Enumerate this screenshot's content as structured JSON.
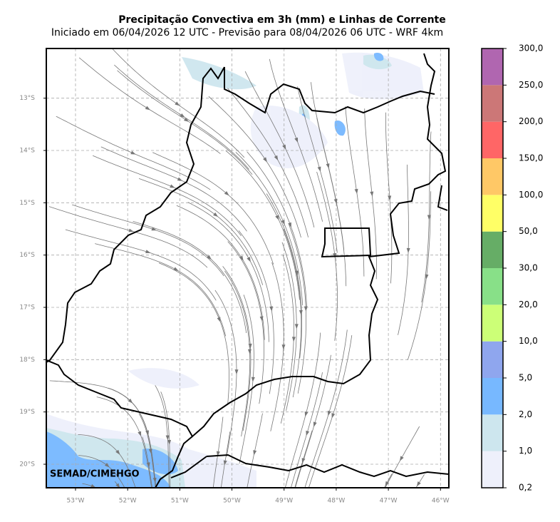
{
  "title": "Precipitação Convectiva em 3h (mm) e Linhas de Corrente",
  "subtitle": "Iniciado em 06/04/2026 12 UTC - Previsão para 08/04/2026 06 UTC - WRF 4km",
  "credit": "SEMAD/CIMEHGO",
  "map": {
    "xlim": [
      -53.56,
      -45.84
    ],
    "ylim": [
      -20.45,
      -12.05
    ],
    "grid": true,
    "xticks": [
      {
        "value": -53,
        "label": "53°W"
      },
      {
        "value": -52,
        "label": "52°W"
      },
      {
        "value": -51,
        "label": "51°W"
      },
      {
        "value": -50,
        "label": "50°W"
      },
      {
        "value": -49,
        "label": "49°W"
      },
      {
        "value": -48,
        "label": "48°W"
      },
      {
        "value": -47,
        "label": "47°W"
      },
      {
        "value": -46,
        "label": "46°W"
      }
    ],
    "yticks": [
      {
        "value": -13,
        "label": "13°S"
      },
      {
        "value": -14,
        "label": "14°S"
      },
      {
        "value": -15,
        "label": "15°S"
      },
      {
        "value": -16,
        "label": "16°S"
      },
      {
        "value": -17,
        "label": "17°S"
      },
      {
        "value": -18,
        "label": "18°S"
      },
      {
        "value": -19,
        "label": "19°S"
      },
      {
        "value": -20,
        "label": "20°S"
      }
    ]
  },
  "colorbar": {
    "levels": [
      {
        "value": 0.2,
        "label": "0,2"
      },
      {
        "value": 1,
        "label": "1,0"
      },
      {
        "value": 2,
        "label": "2,0"
      },
      {
        "value": 5,
        "label": "5,0"
      },
      {
        "value": 10,
        "label": "10,0"
      },
      {
        "value": 20,
        "label": "20,0"
      },
      {
        "value": 30,
        "label": "30,0"
      },
      {
        "value": 50,
        "label": "50,0"
      },
      {
        "value": 100,
        "label": "100,0"
      },
      {
        "value": 150,
        "label": "150,0"
      },
      {
        "value": 200,
        "label": "200,0"
      },
      {
        "value": 250,
        "label": "250,0"
      },
      {
        "value": 300,
        "label": "300,0"
      }
    ],
    "colors": [
      "#eef0fb",
      "#cde6ee",
      "#77b8ff",
      "#8fa6ee",
      "#ccff77",
      "#88e088",
      "#66ad66",
      "#ffff66",
      "#ffc866",
      "#ff6666",
      "#cc7777",
      "#b066b0"
    ]
  }
}
